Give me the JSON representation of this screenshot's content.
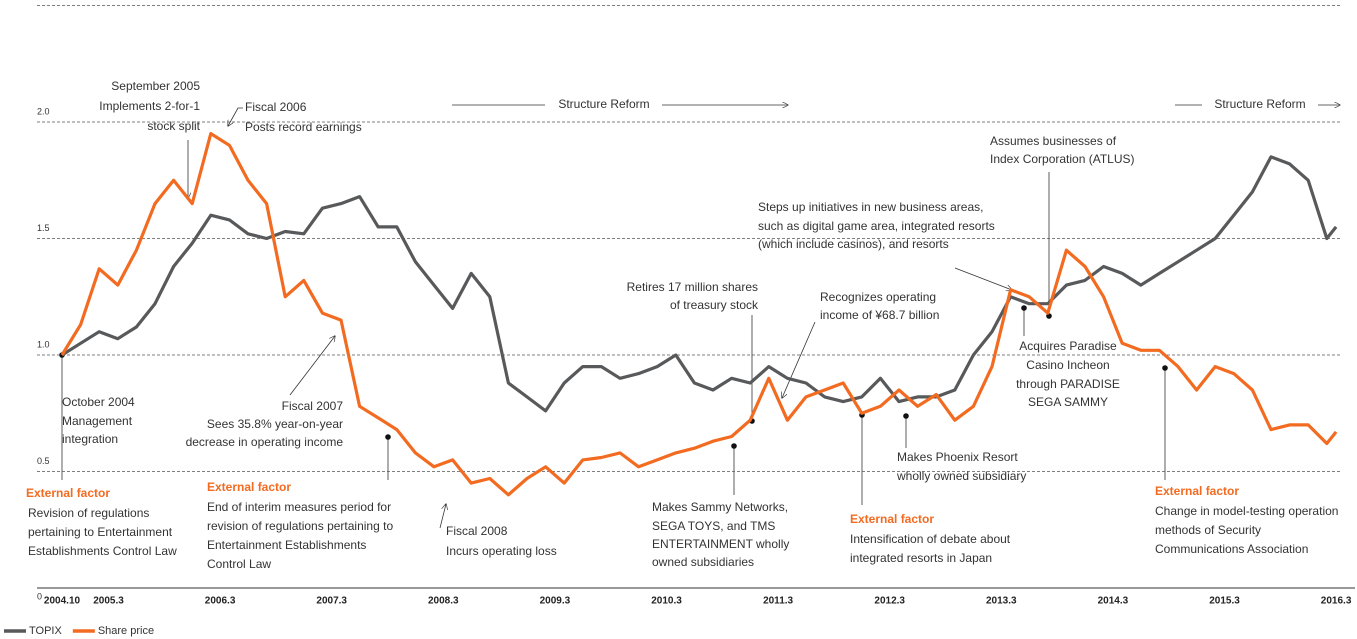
{
  "chart_data": {
    "type": "line",
    "x": [
      "2004.10",
      "2004.12",
      "2005.2",
      "2005.4",
      "2005.6",
      "2005.8",
      "2005.10",
      "2005.12",
      "2006.2",
      "2006.4",
      "2006.6",
      "2006.8",
      "2006.10",
      "2006.12",
      "2007.2",
      "2007.4",
      "2007.6",
      "2007.8",
      "2007.10",
      "2007.12",
      "2008.2",
      "2008.4",
      "2008.6",
      "2008.8",
      "2008.10",
      "2008.12",
      "2009.2",
      "2009.4",
      "2009.6",
      "2009.8",
      "2009.10",
      "2009.12",
      "2010.2",
      "2010.4",
      "2010.6",
      "2010.8",
      "2010.10",
      "2010.12",
      "2011.2",
      "2011.4",
      "2011.6",
      "2011.8",
      "2011.10",
      "2011.12",
      "2012.2",
      "2012.4",
      "2012.6",
      "2012.8",
      "2012.10",
      "2012.12",
      "2013.2",
      "2013.4",
      "2013.6",
      "2013.8",
      "2013.10",
      "2013.12",
      "2014.2",
      "2014.4",
      "2014.6",
      "2014.8",
      "2014.10",
      "2014.12",
      "2015.2",
      "2015.4",
      "2015.6",
      "2015.8",
      "2015.10",
      "2015.12",
      "2016.2",
      "2016.3"
    ],
    "series": [
      {
        "name": "TOPIX",
        "color": "#58595b",
        "values": [
          1.0,
          1.05,
          1.1,
          1.07,
          1.12,
          1.22,
          1.38,
          1.48,
          1.6,
          1.58,
          1.52,
          1.5,
          1.53,
          1.52,
          1.63,
          1.65,
          1.68,
          1.55,
          1.55,
          1.4,
          1.3,
          1.2,
          1.35,
          1.25,
          0.88,
          0.82,
          0.76,
          0.88,
          0.95,
          0.95,
          0.9,
          0.92,
          0.95,
          1.0,
          0.88,
          0.85,
          0.9,
          0.88,
          0.95,
          0.9,
          0.88,
          0.82,
          0.8,
          0.82,
          0.9,
          0.8,
          0.82,
          0.82,
          0.85,
          1.0,
          1.1,
          1.25,
          1.22,
          1.22,
          1.3,
          1.32,
          1.38,
          1.35,
          1.3,
          1.35,
          1.4,
          1.45,
          1.5,
          1.6,
          1.7,
          1.85,
          1.82,
          1.75,
          1.5,
          1.55
        ]
      },
      {
        "name": "Share price",
        "color": "#f26b21",
        "values": [
          1.0,
          1.13,
          1.37,
          1.3,
          1.45,
          1.65,
          1.75,
          1.65,
          1.95,
          1.9,
          1.75,
          1.65,
          1.25,
          1.32,
          1.18,
          1.15,
          0.78,
          0.73,
          0.68,
          0.58,
          0.52,
          0.55,
          0.45,
          0.47,
          0.4,
          0.47,
          0.52,
          0.45,
          0.55,
          0.56,
          0.58,
          0.52,
          0.55,
          0.58,
          0.6,
          0.63,
          0.65,
          0.72,
          0.9,
          0.72,
          0.82,
          0.85,
          0.88,
          0.75,
          0.78,
          0.85,
          0.78,
          0.83,
          0.72,
          0.78,
          0.95,
          1.28,
          1.25,
          1.18,
          1.45,
          1.38,
          1.25,
          1.05,
          1.02,
          1.02,
          0.95,
          0.85,
          0.95,
          0.92,
          0.85,
          0.68,
          0.7,
          0.7,
          0.62,
          0.67
        ]
      }
    ],
    "xticks": [
      "2004.10",
      "2005.3",
      "2006.3",
      "2007.3",
      "2008.3",
      "2009.3",
      "2010.3",
      "2011.3",
      "2012.3",
      "2013.3",
      "2014.3",
      "2015.3",
      "2016.3"
    ],
    "ylim": [
      0,
      2.5
    ],
    "yticks": [
      0,
      0.5,
      {
        "value": 1,
        "label": "1.0"
      },
      1.5,
      {
        "value": 2,
        "label": "2.0"
      },
      2.5
    ],
    "grid": true,
    "legend": "bottom-left",
    "reform_labels": [
      "Structure Reform",
      "Structure Reform"
    ],
    "annotations": [
      {
        "lines": [
          "September 2005",
          "Implements 2-for-1",
          "stock split"
        ]
      },
      {
        "lines": [
          "Fiscal 2006",
          "Posts record earnings"
        ]
      },
      {
        "lines": [
          "October 2004",
          "Management",
          "integration"
        ]
      },
      {
        "lines": [
          "Fiscal 2007",
          "Sees 35.8% year-on-year",
          "decrease in operating income"
        ]
      },
      {
        "lines": [
          "Fiscal 2008",
          "Incurs operating loss"
        ]
      },
      {
        "lines": [
          "Retires 17 million shares",
          "of treasury stock"
        ]
      },
      {
        "lines": [
          "Recognizes operating",
          "income of ¥68.7 billion"
        ]
      },
      {
        "lines": [
          "Makes Sammy Networks,",
          "SEGA TOYS, and TMS",
          "ENTERTAINMENT wholly",
          "owned subsidiaries"
        ]
      },
      {
        "lines": [
          "Makes Phoenix Resort",
          "wholly owned subsidiary"
        ]
      },
      {
        "lines": [
          "Acquires Paradise",
          "Casino Incheon",
          "through PARADISE",
          "SEGA SAMMY"
        ]
      },
      {
        "lines": [
          "Steps up initiatives in new business areas,",
          "such as digital game area, integrated resorts",
          "(which include casinos), and resorts"
        ]
      },
      {
        "lines": [
          "Assumes businesses of",
          "Index Corporation (ATLUS)"
        ]
      }
    ],
    "external_factors": [
      {
        "heading": "External factor",
        "lines": [
          "Revision of regulations",
          "pertaining to Entertainment",
          "Establishments Control Law"
        ]
      },
      {
        "heading": "External factor",
        "lines": [
          "End of interim measures period for",
          "revision of regulations pertaining to",
          "Entertainment Establishments",
          "Control Law"
        ]
      },
      {
        "heading": "External factor",
        "lines": [
          "Intensification of debate about",
          "integrated resorts in Japan"
        ]
      },
      {
        "heading": "External factor",
        "lines": [
          "Change in model-testing operation",
          "methods of Security",
          "Communications Association"
        ]
      }
    ]
  }
}
